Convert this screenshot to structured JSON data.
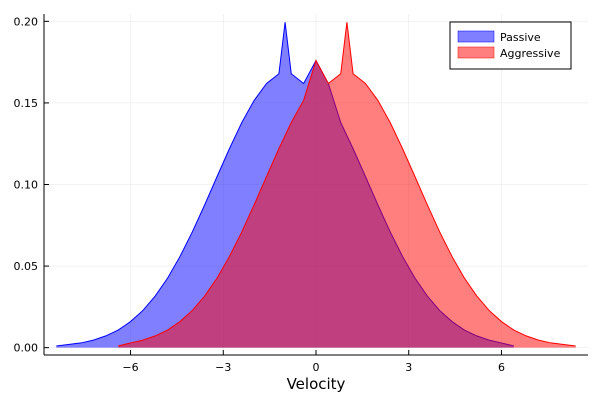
{
  "chart_data": {
    "type": "area",
    "title": "",
    "xlabel": "Velocity",
    "ylabel": "",
    "xlim": [
      -8.8,
      8.8
    ],
    "ylim": [
      -0.0045,
      0.2045
    ],
    "grid": true,
    "legend_position": "top-right",
    "x_ticks": [
      -6,
      -3,
      0,
      3,
      6
    ],
    "x_tick_labels": [
      "−6",
      "−3",
      "0",
      "3",
      "6"
    ],
    "y_ticks": [
      0,
      0.05,
      0.1,
      0.15,
      0.2
    ],
    "y_tick_labels": [
      "0.00",
      "0.05",
      "0.10",
      "0.15",
      "0.20"
    ],
    "series": [
      {
        "name": "Passive",
        "fill_color": "#0000ff",
        "line_color": "#0000ff",
        "x": [
          -8.4,
          -7.6,
          -7.2,
          -6.8,
          -6.4,
          -6.0,
          -5.6,
          -5.2,
          -4.8,
          -4.4,
          -4.0,
          -3.6,
          -3.2,
          -2.8,
          -2.4,
          -2.0,
          -1.6,
          -1.2,
          -1.0,
          -0.8,
          -0.4,
          0.0,
          0.4,
          0.8,
          1.2,
          1.6,
          2.0,
          2.4,
          2.8,
          3.2,
          3.6,
          4.0,
          4.4,
          4.8,
          5.2,
          5.6,
          6.0,
          6.4
        ],
        "y": [
          0.001,
          0.0029,
          0.0046,
          0.0072,
          0.0108,
          0.016,
          0.0228,
          0.0317,
          0.0427,
          0.0559,
          0.071,
          0.0876,
          0.1049,
          0.122,
          0.138,
          0.1516,
          0.1619,
          0.1679,
          0.1995,
          0.1679,
          0.1619,
          0.176,
          0.1619,
          0.138,
          0.122,
          0.1049,
          0.0876,
          0.071,
          0.0559,
          0.0427,
          0.0317,
          0.0228,
          0.016,
          0.0108,
          0.0072,
          0.0046,
          0.0029,
          0.001
        ]
      },
      {
        "name": "Aggressive",
        "fill_color": "#ff0000",
        "line_color": "#ff0000",
        "x": [
          -6.4,
          -6.0,
          -5.6,
          -5.2,
          -4.8,
          -4.4,
          -4.0,
          -3.6,
          -3.2,
          -2.8,
          -2.4,
          -2.0,
          -1.6,
          -1.2,
          -0.8,
          -0.4,
          0.0,
          0.4,
          0.8,
          1.0,
          1.2,
          1.6,
          2.0,
          2.4,
          2.8,
          3.2,
          3.6,
          4.0,
          4.4,
          4.8,
          5.2,
          5.6,
          6.0,
          6.4,
          6.8,
          7.2,
          7.6,
          8.4
        ],
        "y": [
          0.001,
          0.0029,
          0.0046,
          0.0072,
          0.0108,
          0.016,
          0.0228,
          0.0317,
          0.0427,
          0.0559,
          0.071,
          0.0876,
          0.1049,
          0.122,
          0.138,
          0.1516,
          0.176,
          0.1619,
          0.1679,
          0.1995,
          0.1679,
          0.1619,
          0.1516,
          0.138,
          0.122,
          0.1049,
          0.0876,
          0.071,
          0.0559,
          0.0427,
          0.0317,
          0.0228,
          0.016,
          0.0108,
          0.0072,
          0.0046,
          0.0029,
          0.001
        ]
      }
    ]
  }
}
